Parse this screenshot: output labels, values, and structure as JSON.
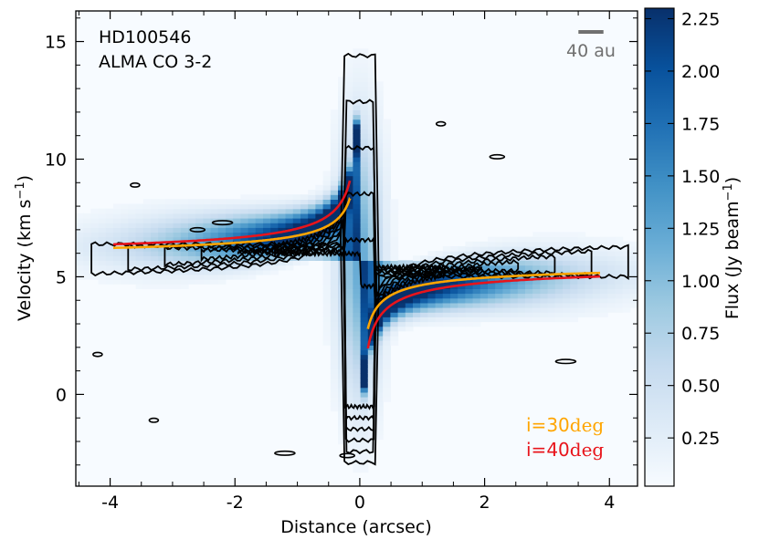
{
  "chart_data": {
    "type": "heatmap",
    "title_lines": [
      "HD100546",
      "ALMA CO 3-2"
    ],
    "xlabel": "Distance (arcsec)",
    "ylabel": {
      "main": "Velocity (km s",
      "sup": "−1",
      "close": ")"
    },
    "xlim": [
      -4.55,
      4.45
    ],
    "ylim": [
      -3.9,
      16.3
    ],
    "xticks": [
      -4,
      -2,
      0,
      2,
      4
    ],
    "xtick_labels": [
      "-4",
      "-2",
      "0",
      "2",
      "4"
    ],
    "yticks": [
      0,
      5,
      10,
      15
    ],
    "ytick_labels": [
      "0",
      "5",
      "10",
      "15"
    ],
    "colorbar": {
      "label": {
        "main": "Flux (Jy beam",
        "sup": "−1",
        "close": ")"
      },
      "range": [
        0.02,
        2.3
      ],
      "ticks": [
        0.25,
        0.5,
        0.75,
        1.0,
        1.25,
        1.5,
        1.75,
        2.0,
        2.25
      ],
      "tick_labels": [
        "0.25",
        "0.50",
        "0.75",
        "1.00",
        "1.25",
        "1.50",
        "1.75",
        "2.00",
        "2.25"
      ],
      "low_color": "#f7fbff",
      "high_color": "#08306b"
    },
    "systemic_velocity": 5.7,
    "scale_bar": {
      "label": "40 au",
      "length_arcsec": 0.4,
      "color": "#707070"
    },
    "models": [
      {
        "name": "i=30",
        "label_prefix": "i=30",
        "label_unit": "deg",
        "inclination_deg": 30,
        "color": "#ffa500",
        "k": 1.05
      },
      {
        "name": "i=40",
        "label_prefix": "i=40",
        "label_unit": "deg",
        "inclination_deg": 40,
        "color": "#e8141b",
        "k": 1.35
      }
    ],
    "contours": {
      "color": "#000000",
      "levels": 6
    }
  }
}
